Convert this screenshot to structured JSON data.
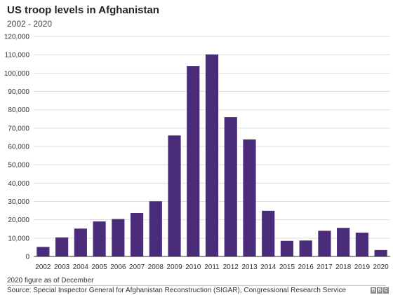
{
  "chart_data": {
    "type": "bar",
    "title": "US troop levels in Afghanistan",
    "subtitle": "2002 - 2020",
    "categories": [
      "2002",
      "2003",
      "2004",
      "2005",
      "2006",
      "2007",
      "2008",
      "2009",
      "2010",
      "2011",
      "2012",
      "2013",
      "2014",
      "2015",
      "2016",
      "2017",
      "2018",
      "2019",
      "2020"
    ],
    "values": [
      5200,
      10400,
      15200,
      19100,
      20400,
      23700,
      30100,
      66000,
      103900,
      110200,
      76000,
      63800,
      24900,
      8500,
      8700,
      14000,
      15600,
      13000,
      3500
    ],
    "ylim": [
      0,
      120000
    ],
    "yticks": [
      0,
      10000,
      20000,
      30000,
      40000,
      50000,
      60000,
      70000,
      80000,
      90000,
      100000,
      110000,
      120000
    ],
    "ytick_labels": [
      "0",
      "10,000",
      "20,000",
      "30,000",
      "40,000",
      "50,000",
      "60,000",
      "70,000",
      "80,000",
      "90,000",
      "100,000",
      "110,000",
      "120,000"
    ],
    "xlabel": "",
    "ylabel": "",
    "grid": true,
    "bar_color": "#4b2c7b",
    "grid_color": "#dddddd"
  },
  "footnote": "2020 figure as of December",
  "source": "Source: Special Inspector General for Afghanistan Reconstruction (SIGAR), Congressional Research Service",
  "logo": [
    "B",
    "B",
    "C"
  ]
}
